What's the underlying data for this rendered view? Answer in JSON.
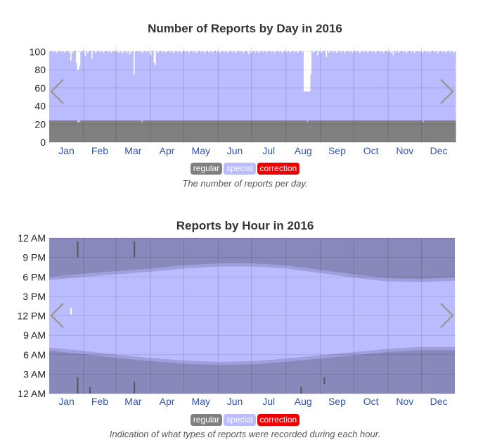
{
  "colors": {
    "regular": "#808080",
    "special": "#bbbbff",
    "correction": "#ee0000"
  },
  "legend": {
    "regular": "regular",
    "special": "special",
    "correction": "correction"
  },
  "chart_data": [
    {
      "type": "area",
      "title": "Number of Reports by Day in 2016",
      "caption": "The number of reports per day.",
      "x_tick_labels": [
        "Jan",
        "Feb",
        "Mar",
        "Apr",
        "May",
        "Jun",
        "Jul",
        "Aug",
        "Sep",
        "Oct",
        "Nov",
        "Dec"
      ],
      "y_tick_labels": [
        "0",
        "20",
        "40",
        "60",
        "80",
        "100"
      ],
      "ylim": [
        0,
        105
      ],
      "xlim": [
        1,
        366
      ],
      "grid": true,
      "series": [
        {
          "name": "regular",
          "values_note": "constant",
          "value": 24,
          "dips": [
            [
              26,
              22
            ],
            [
              27,
              22
            ],
            [
              28,
              22
            ],
            [
              84,
              22
            ],
            [
              233,
              22
            ],
            [
              337,
              22
            ]
          ]
        },
        {
          "name": "special",
          "value": 100,
          "dips": [
            [
              20,
              90
            ],
            [
              25,
              88
            ],
            [
              26,
              80
            ],
            [
              27,
              80
            ],
            [
              28,
              84
            ],
            [
              33,
              95
            ],
            [
              39,
              92
            ],
            [
              66,
              98
            ],
            [
              73,
              97
            ],
            [
              77,
              75
            ],
            [
              92,
              96
            ],
            [
              95,
              88
            ],
            [
              96,
              85
            ],
            [
              180,
              97
            ],
            [
              230,
              56
            ],
            [
              231,
              56
            ],
            [
              232,
              56
            ],
            [
              233,
              56
            ],
            [
              234,
              56
            ],
            [
              235,
              56
            ],
            [
              236,
              75
            ],
            [
              242,
              96
            ],
            [
              250,
              94
            ],
            [
              310,
              96
            ],
            [
              350,
              98
            ]
          ]
        }
      ],
      "annotations": []
    },
    {
      "type": "area",
      "title": "Reports by Hour in 2016",
      "caption": "Indication of what types of reports were recorded during each hour.",
      "x_tick_labels": [
        "Jan",
        "Feb",
        "Mar",
        "Apr",
        "May",
        "Jun",
        "Jul",
        "Aug",
        "Sep",
        "Oct",
        "Nov",
        "Dec"
      ],
      "y_tick_labels": [
        "12 AM",
        "3 AM",
        "6 AM",
        "9 AM",
        "12 PM",
        "3 PM",
        "6 PM",
        "9 PM",
        "12 AM"
      ],
      "ylim": [
        0,
        24
      ],
      "xlim": [
        1,
        366
      ],
      "grid": true,
      "series": [
        {
          "name": "regular",
          "description": "night hours"
        },
        {
          "name": "special",
          "description": "daylight hours",
          "start_hour_by_month": [
            7.1,
            6.6,
            6.0,
            5.5,
            5.1,
            4.9,
            5.0,
            5.4,
            5.9,
            6.4,
            6.9,
            7.2,
            7.2
          ],
          "end_hour_by_month": [
            17.5,
            18.0,
            18.4,
            18.8,
            19.3,
            19.6,
            19.6,
            19.3,
            18.6,
            17.9,
            17.3,
            17.2,
            17.4
          ]
        }
      ]
    }
  ]
}
